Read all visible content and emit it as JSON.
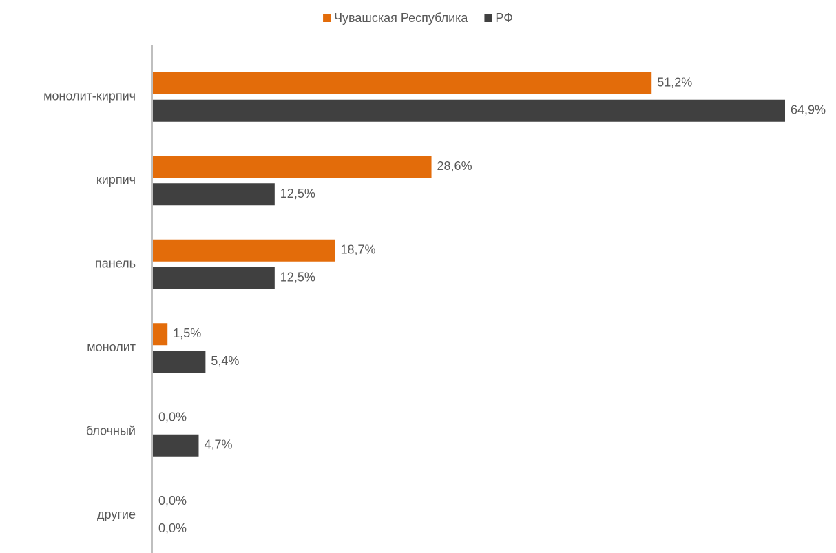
{
  "chart_data": {
    "type": "bar",
    "orientation": "horizontal",
    "categories": [
      "монолит-кирпич",
      "кирпич",
      "панель",
      "монолит",
      "блочный",
      "другие"
    ],
    "series": [
      {
        "name": "Чувашская Республика",
        "color": "#e36c0a",
        "values": [
          51.2,
          28.6,
          18.7,
          1.5,
          0,
          0
        ],
        "value_labels": [
          "51,2%",
          "28,6%",
          "18,7%",
          "1,5%",
          "0,0%",
          "0,0%"
        ]
      },
      {
        "name": "РФ",
        "color": "#404040",
        "values": [
          64.9,
          12.5,
          12.5,
          5.4,
          4.7,
          0
        ],
        "value_labels": [
          "64,9%",
          "12,5%",
          "12,5%",
          "5,4%",
          "4,7%",
          "0,0%"
        ]
      }
    ],
    "legend": "top"
  }
}
